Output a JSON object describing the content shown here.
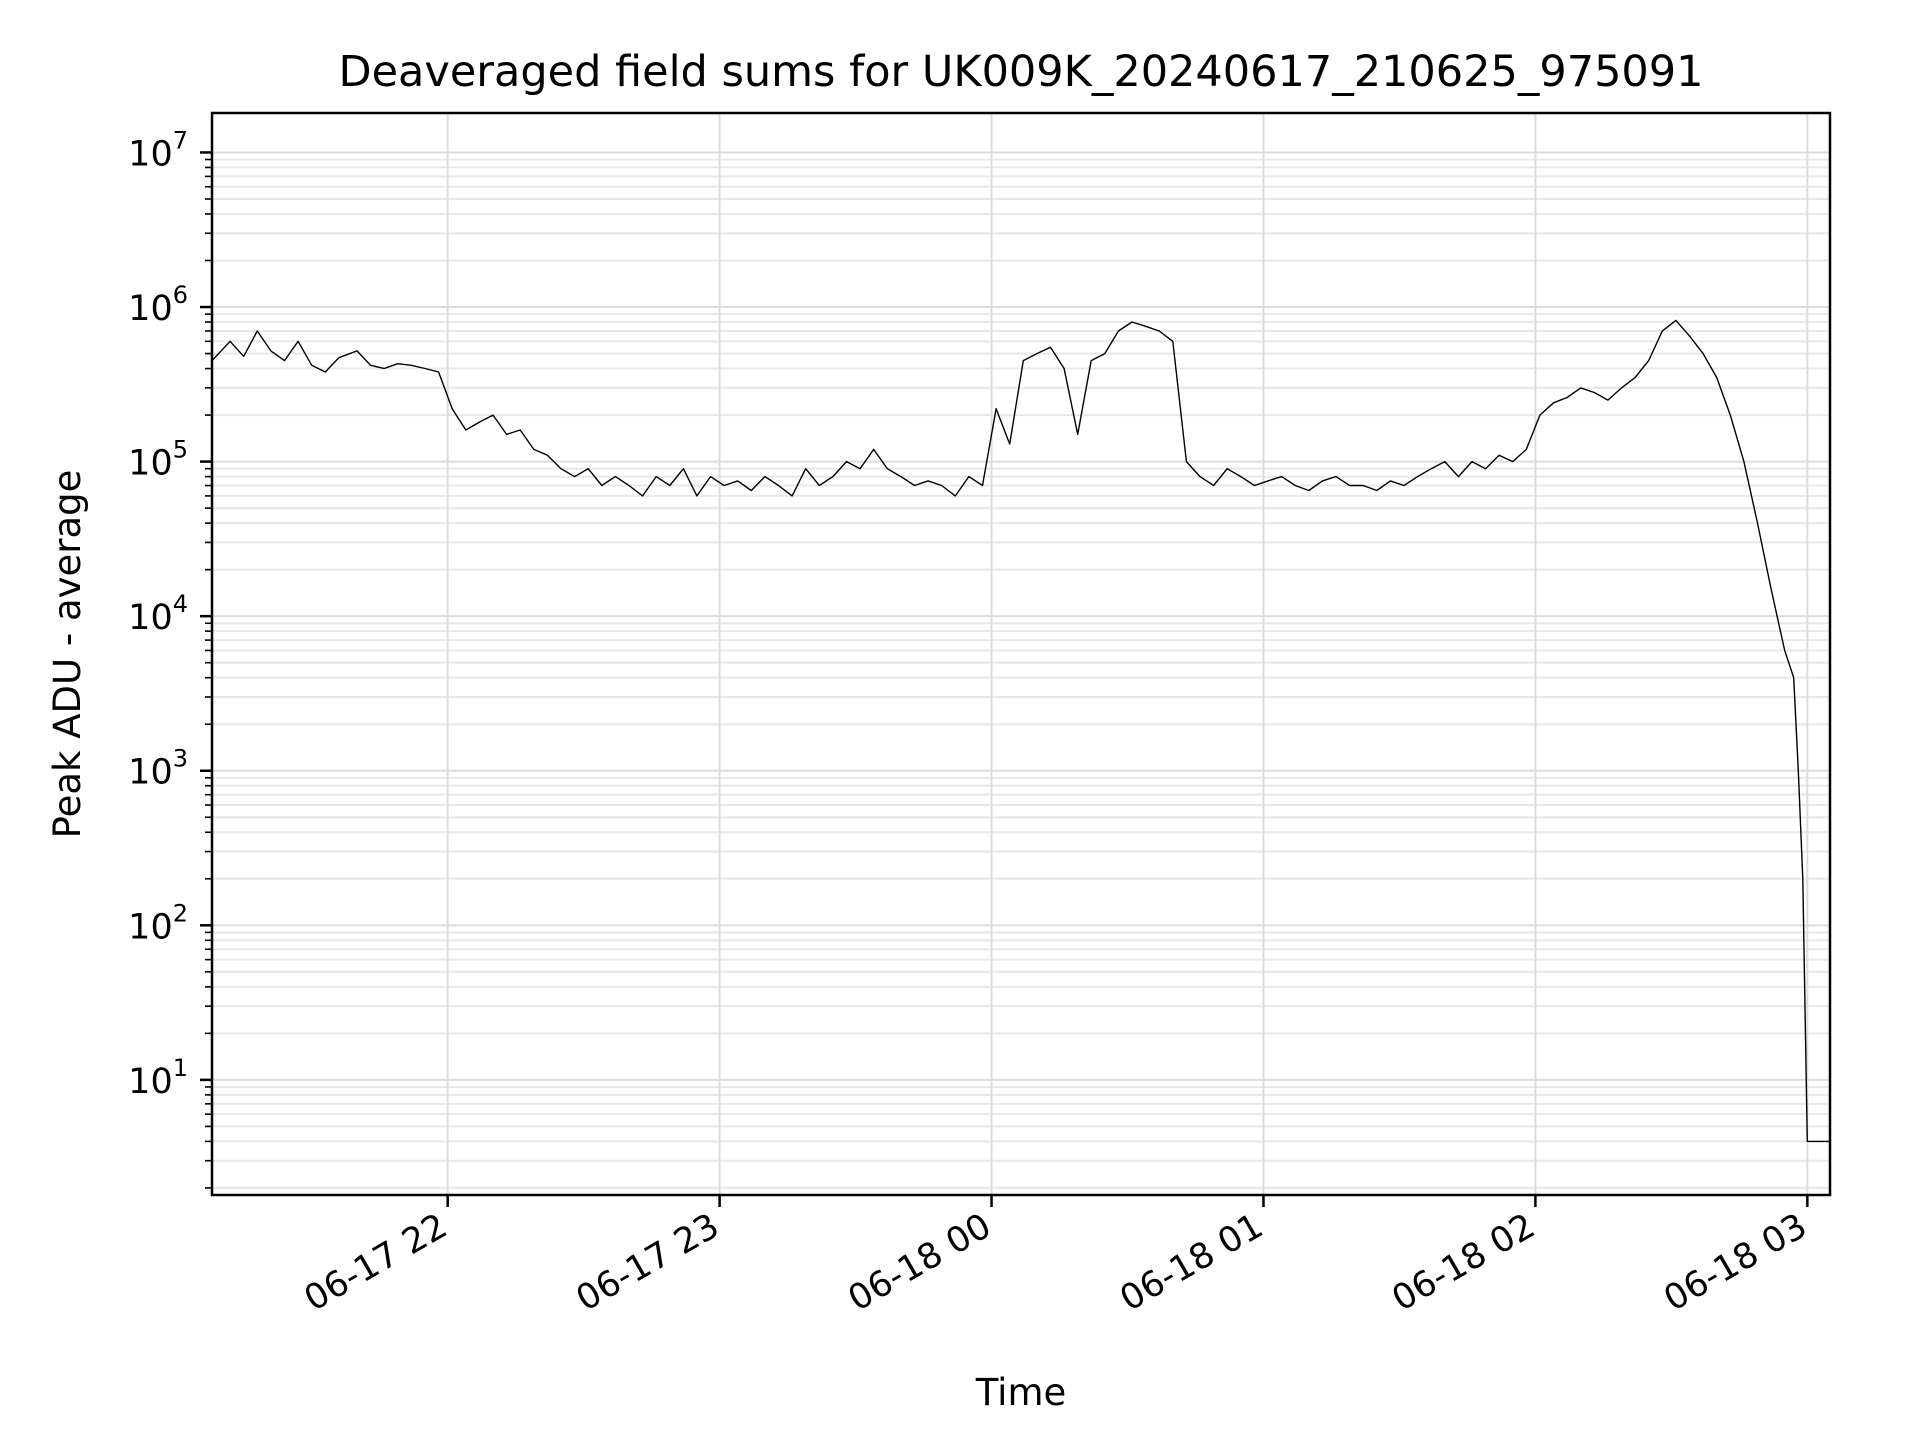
{
  "chart_data": {
    "type": "line",
    "title": "Deaveraged field sums for UK009K_20240617_210625_975091",
    "xlabel": "Time",
    "ylabel": "Peak ADU - average",
    "yscale": "log",
    "xlim": [
      "2024-06-17 21:08",
      "2024-06-18 03:05"
    ],
    "ylim": [
      1.8,
      18000000
    ],
    "grid": true,
    "grid_minor": true,
    "x_ticks": [
      {
        "t": "2024-06-17 22:00",
        "label": "06-17 22"
      },
      {
        "t": "2024-06-17 23:00",
        "label": "06-17 23"
      },
      {
        "t": "2024-06-18 00:00",
        "label": "06-18 00"
      },
      {
        "t": "2024-06-18 01:00",
        "label": "06-18 01"
      },
      {
        "t": "2024-06-18 02:00",
        "label": "06-18 02"
      },
      {
        "t": "2024-06-18 03:00",
        "label": "06-18 03"
      }
    ],
    "y_ticks": [
      {
        "value": 10,
        "base": "10",
        "exp": "1"
      },
      {
        "value": 100,
        "base": "10",
        "exp": "2"
      },
      {
        "value": 1000,
        "base": "10",
        "exp": "3"
      },
      {
        "value": 10000,
        "base": "10",
        "exp": "4"
      },
      {
        "value": 100000,
        "base": "10",
        "exp": "5"
      },
      {
        "value": 1000000,
        "base": "10",
        "exp": "6"
      },
      {
        "value": 10000000,
        "base": "10",
        "exp": "7"
      }
    ],
    "series": [
      {
        "color": "#000000",
        "x": [
          "2024-06-17 21:08",
          "2024-06-17 21:12",
          "2024-06-17 21:15",
          "2024-06-17 21:18",
          "2024-06-17 21:21",
          "2024-06-17 21:24",
          "2024-06-17 21:27",
          "2024-06-17 21:30",
          "2024-06-17 21:33",
          "2024-06-17 21:36",
          "2024-06-17 21:40",
          "2024-06-17 21:43",
          "2024-06-17 21:46",
          "2024-06-17 21:49",
          "2024-06-17 21:52",
          "2024-06-17 21:55",
          "2024-06-17 21:58",
          "2024-06-17 22:01",
          "2024-06-17 22:04",
          "2024-06-17 22:07",
          "2024-06-17 22:10",
          "2024-06-17 22:13",
          "2024-06-17 22:16",
          "2024-06-17 22:19",
          "2024-06-17 22:22",
          "2024-06-17 22:25",
          "2024-06-17 22:28",
          "2024-06-17 22:31",
          "2024-06-17 22:34",
          "2024-06-17 22:37",
          "2024-06-17 22:40",
          "2024-06-17 22:43",
          "2024-06-17 22:46",
          "2024-06-17 22:49",
          "2024-06-17 22:52",
          "2024-06-17 22:55",
          "2024-06-17 22:58",
          "2024-06-17 23:01",
          "2024-06-17 23:04",
          "2024-06-17 23:07",
          "2024-06-17 23:10",
          "2024-06-17 23:13",
          "2024-06-17 23:16",
          "2024-06-17 23:19",
          "2024-06-17 23:22",
          "2024-06-17 23:25",
          "2024-06-17 23:28",
          "2024-06-17 23:31",
          "2024-06-17 23:34",
          "2024-06-17 23:37",
          "2024-06-17 23:40",
          "2024-06-17 23:43",
          "2024-06-17 23:46",
          "2024-06-17 23:49",
          "2024-06-17 23:52",
          "2024-06-17 23:55",
          "2024-06-17 23:58",
          "2024-06-18 00:01",
          "2024-06-18 00:04",
          "2024-06-18 00:07",
          "2024-06-18 00:10",
          "2024-06-18 00:13",
          "2024-06-18 00:16",
          "2024-06-18 00:19",
          "2024-06-18 00:22",
          "2024-06-18 00:25",
          "2024-06-18 00:28",
          "2024-06-18 00:31",
          "2024-06-18 00:34",
          "2024-06-18 00:37",
          "2024-06-18 00:40",
          "2024-06-18 00:43",
          "2024-06-18 00:46",
          "2024-06-18 00:49",
          "2024-06-18 00:52",
          "2024-06-18 00:55",
          "2024-06-18 00:58",
          "2024-06-18 01:01",
          "2024-06-18 01:04",
          "2024-06-18 01:07",
          "2024-06-18 01:10",
          "2024-06-18 01:13",
          "2024-06-18 01:16",
          "2024-06-18 01:19",
          "2024-06-18 01:22",
          "2024-06-18 01:25",
          "2024-06-18 01:28",
          "2024-06-18 01:31",
          "2024-06-18 01:34",
          "2024-06-18 01:37",
          "2024-06-18 01:40",
          "2024-06-18 01:43",
          "2024-06-18 01:46",
          "2024-06-18 01:49",
          "2024-06-18 01:52",
          "2024-06-18 01:55",
          "2024-06-18 01:58",
          "2024-06-18 02:01",
          "2024-06-18 02:04",
          "2024-06-18 02:07",
          "2024-06-18 02:10",
          "2024-06-18 02:13",
          "2024-06-18 02:16",
          "2024-06-18 02:19",
          "2024-06-18 02:22",
          "2024-06-18 02:25",
          "2024-06-18 02:28",
          "2024-06-18 02:31",
          "2024-06-18 02:34",
          "2024-06-18 02:37",
          "2024-06-18 02:40",
          "2024-06-18 02:43",
          "2024-06-18 02:46",
          "2024-06-18 02:49",
          "2024-06-18 02:52",
          "2024-06-18 02:55",
          "2024-06-18 02:57",
          "2024-06-18 02:58",
          "2024-06-18 02:59",
          "2024-06-18 03:00",
          "2024-06-18 03:01",
          "2024-06-18 03:03",
          "2024-06-18 03:05"
        ],
        "y": [
          450000,
          600000,
          480000,
          700000,
          520000,
          450000,
          600000,
          420000,
          380000,
          470000,
          520000,
          420000,
          400000,
          430000,
          420000,
          400000,
          380000,
          220000,
          160000,
          180000,
          200000,
          150000,
          160000,
          120000,
          110000,
          90000,
          80000,
          90000,
          70000,
          80000,
          70000,
          60000,
          80000,
          70000,
          90000,
          60000,
          80000,
          70000,
          75000,
          65000,
          80000,
          70000,
          60000,
          90000,
          70000,
          80000,
          100000,
          90000,
          120000,
          90000,
          80000,
          70000,
          75000,
          70000,
          60000,
          80000,
          70000,
          220000,
          130000,
          450000,
          500000,
          550000,
          400000,
          150000,
          450000,
          500000,
          700000,
          800000,
          750000,
          700000,
          600000,
          100000,
          80000,
          70000,
          90000,
          80000,
          70000,
          75000,
          80000,
          70000,
          65000,
          75000,
          80000,
          70000,
          70000,
          65000,
          75000,
          70000,
          80000,
          90000,
          100000,
          80000,
          100000,
          90000,
          110000,
          100000,
          120000,
          200000,
          240000,
          260000,
          300000,
          280000,
          250000,
          300000,
          350000,
          450000,
          700000,
          820000,
          650000,
          500000,
          350000,
          200000,
          100000,
          40000,
          15000,
          6000,
          4000,
          1000,
          200,
          4,
          4,
          4,
          4
        ]
      }
    ]
  }
}
